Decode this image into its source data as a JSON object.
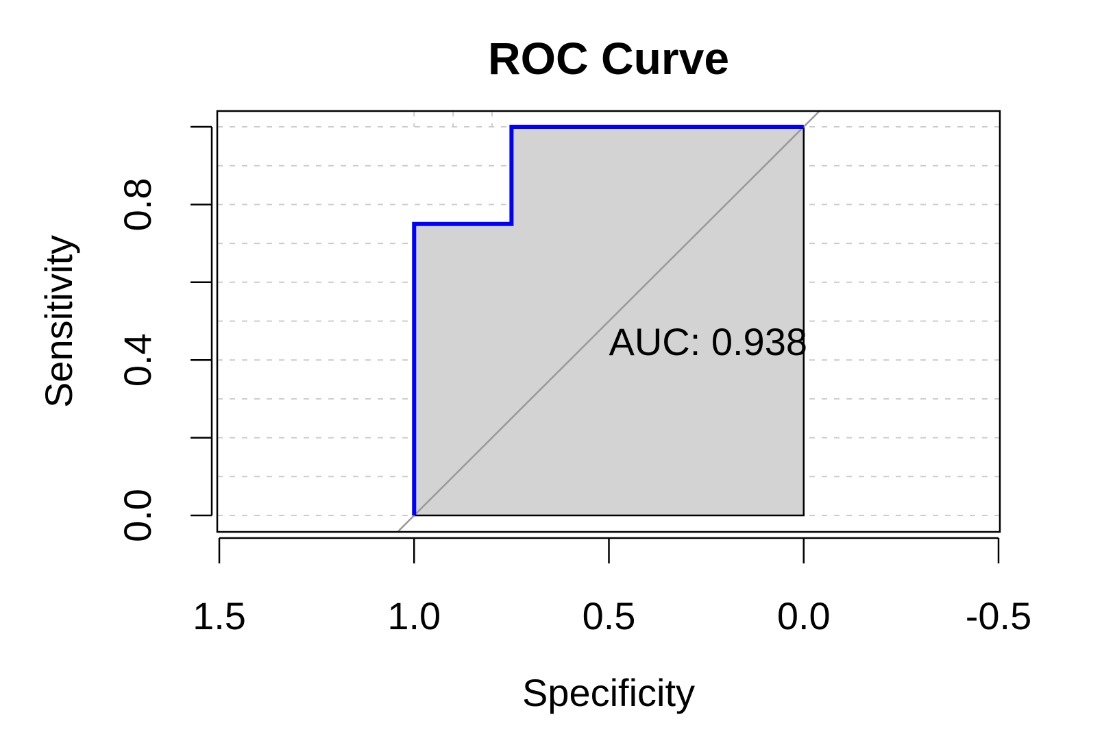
{
  "chart_data": {
    "type": "line",
    "title": "ROC Curve",
    "xlabel": "Specificity",
    "ylabel": "Sensitivity",
    "x_reversed": true,
    "xlim": [
      1.5,
      -0.5
    ],
    "ylim": [
      0.0,
      1.0
    ],
    "x_ticks": [
      "1.5",
      "1.0",
      "0.5",
      "0.0",
      "-0.5"
    ],
    "x_tick_values": [
      1.5,
      1.0,
      0.5,
      0.0,
      -0.5
    ],
    "y_ticks": [
      "0.0",
      "0.4",
      "0.8"
    ],
    "y_tick_values": [
      0.0,
      0.2,
      0.4,
      0.6,
      0.8,
      1.0
    ],
    "y_labeled_ticks": [
      0.0,
      0.4,
      0.8
    ],
    "grid": true,
    "grid_x": [
      1.0,
      0.9,
      0.8
    ],
    "grid_y": [
      0.0,
      0.1,
      0.2,
      0.3,
      0.4,
      0.5,
      0.6,
      0.7,
      0.8,
      0.9,
      1.0
    ],
    "series": [
      {
        "specificity": [
          1.0,
          1.0,
          0.75,
          0.75,
          0.0
        ],
        "sensitivity": [
          0.0,
          0.75,
          0.75,
          1.0,
          1.0
        ],
        "color": "#0000ff"
      }
    ],
    "auc_polygon_fill": "#d3d3d3",
    "diagonal_color": "#999999",
    "annotation": {
      "text": "AUC: 0.938",
      "x": 0.5,
      "y": 0.45,
      "color": "#0000ff"
    }
  }
}
